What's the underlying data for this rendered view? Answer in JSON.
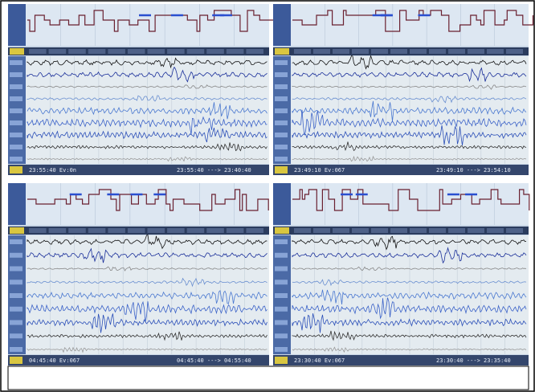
{
  "panels": [
    {
      "status_left": "23:55:40  Ev:0n",
      "status_right": "23:55:40  --->  23:40:40"
    },
    {
      "status_left": "23:49:10  Ev:067",
      "status_right": "23:49:10  --->  23:54:10"
    },
    {
      "status_left": "04:45:40  Ev:067",
      "status_right": "04:45:40  --->  04:55:40"
    },
    {
      "status_left": "23:30:40  Ev:067",
      "status_right": "23:30:40  --->  23:35:40"
    }
  ]
}
